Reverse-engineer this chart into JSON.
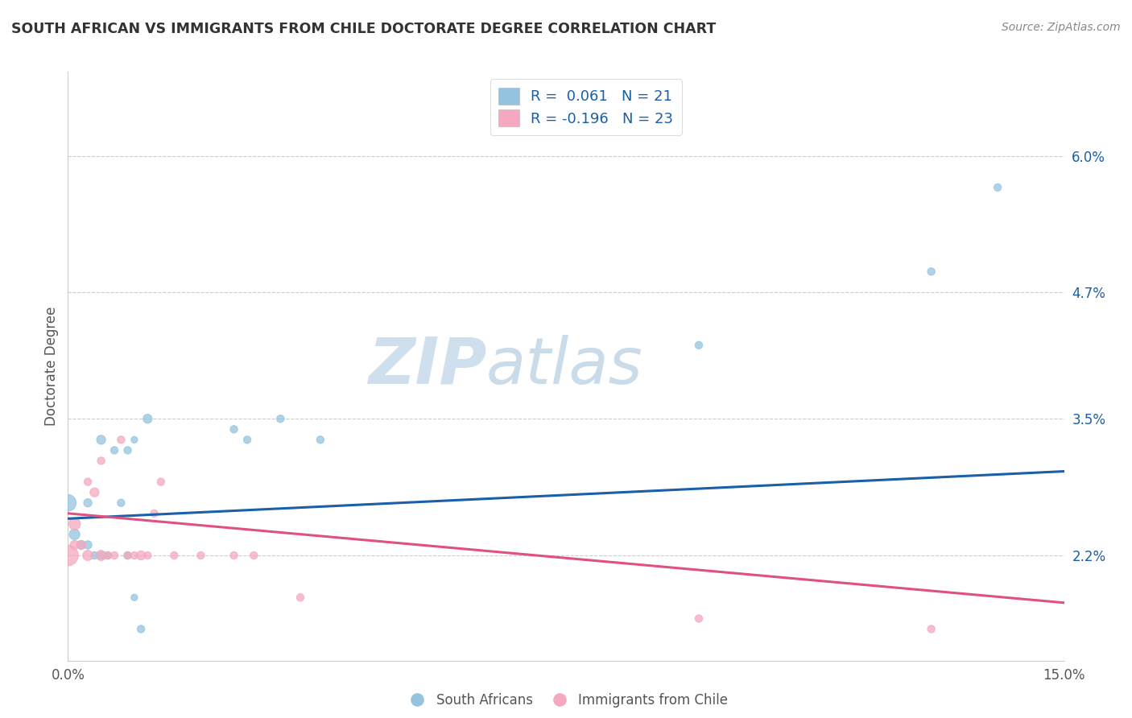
{
  "title": "SOUTH AFRICAN VS IMMIGRANTS FROM CHILE DOCTORATE DEGREE CORRELATION CHART",
  "source_text": "Source: ZipAtlas.com",
  "ylabel": "Doctorate Degree",
  "xlim": [
    0.0,
    0.15
  ],
  "ylim": [
    0.012,
    0.068
  ],
  "ytick_values": [
    0.022,
    0.035,
    0.047,
    0.06
  ],
  "ytick_labels": [
    "2.2%",
    "3.5%",
    "4.7%",
    "6.0%"
  ],
  "blue_color": "#94c4e0",
  "pink_color": "#f4a9be",
  "line_blue": "#1a5fa8",
  "line_pink": "#e05080",
  "text_blue": "#1a5fa8",
  "sa_x": [
    0.0,
    0.001,
    0.002,
    0.003,
    0.003,
    0.004,
    0.005,
    0.005,
    0.006,
    0.007,
    0.008,
    0.009,
    0.009,
    0.01,
    0.01,
    0.011,
    0.012,
    0.025,
    0.027,
    0.032,
    0.038,
    0.095,
    0.13,
    0.14
  ],
  "sa_y": [
    0.027,
    0.024,
    0.023,
    0.023,
    0.027,
    0.022,
    0.022,
    0.033,
    0.022,
    0.032,
    0.027,
    0.032,
    0.022,
    0.018,
    0.033,
    0.015,
    0.035,
    0.034,
    0.033,
    0.035,
    0.033,
    0.042,
    0.049,
    0.057
  ],
  "sa_s": [
    220,
    90,
    60,
    55,
    55,
    45,
    45,
    65,
    45,
    45,
    45,
    45,
    45,
    35,
    35,
    45,
    65,
    45,
    45,
    45,
    45,
    45,
    45,
    45
  ],
  "ch_x": [
    0.0,
    0.001,
    0.001,
    0.002,
    0.003,
    0.003,
    0.004,
    0.005,
    0.005,
    0.006,
    0.007,
    0.008,
    0.009,
    0.01,
    0.011,
    0.012,
    0.013,
    0.014,
    0.016,
    0.02,
    0.025,
    0.028,
    0.035,
    0.095,
    0.13
  ],
  "ch_y": [
    0.022,
    0.025,
    0.023,
    0.023,
    0.029,
    0.022,
    0.028,
    0.022,
    0.031,
    0.022,
    0.022,
    0.033,
    0.022,
    0.022,
    0.022,
    0.022,
    0.026,
    0.029,
    0.022,
    0.022,
    0.022,
    0.022,
    0.018,
    0.016,
    0.015
  ],
  "ch_s": [
    340,
    110,
    65,
    65,
    45,
    85,
    65,
    85,
    45,
    45,
    45,
    45,
    45,
    45,
    65,
    45,
    45,
    45,
    45,
    45,
    45,
    45,
    45,
    45,
    45
  ],
  "blue_line_x": [
    0.0,
    0.15
  ],
  "blue_line_y": [
    0.0255,
    0.03
  ],
  "pink_line_x": [
    0.0,
    0.15
  ],
  "pink_line_y": [
    0.026,
    0.0175
  ],
  "watermark_zip": "ZIP",
  "watermark_atlas": "atlas",
  "bg": "#ffffff",
  "grid_color": "#cccccc",
  "spine_color": "#cccccc"
}
